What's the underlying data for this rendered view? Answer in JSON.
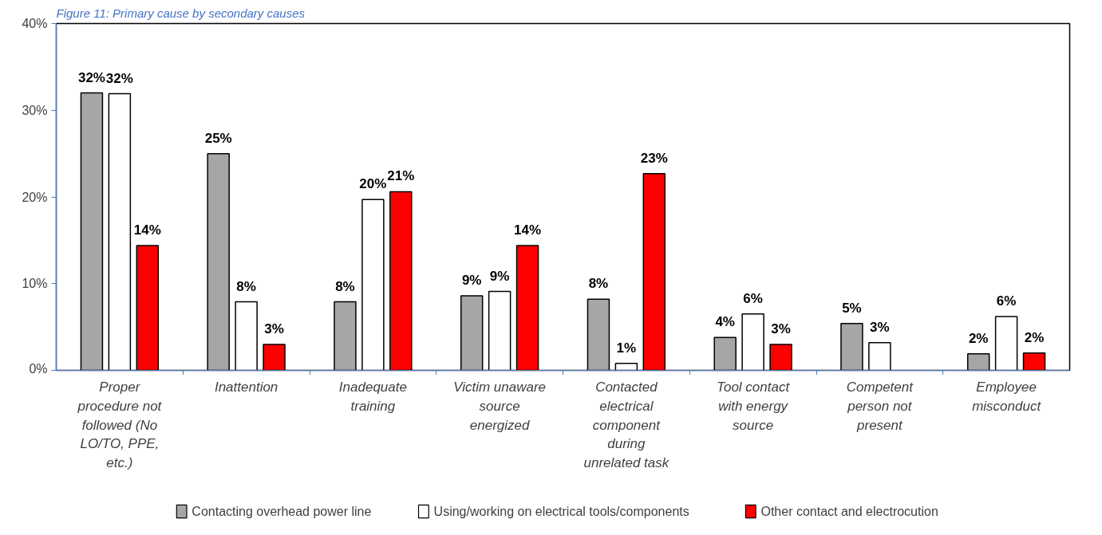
{
  "chart_data": {
    "type": "bar",
    "title": "Figure 11: Primary cause by secondary causes",
    "categories": [
      "Proper procedure not followed (No LO/TO, PPE, etc.)",
      "Inattention",
      "Inadequate training",
      "Victim unaware source energized",
      "Contacted electrical component during unrelated task",
      "Tool contact with energy source",
      "Competent person not present",
      "Employee misconduct"
    ],
    "series": [
      {
        "name": "Contacting overhead power line",
        "color": "#a6a6a6",
        "values": [
          32.0,
          25.0,
          7.9,
          8.6,
          8.2,
          3.8,
          5.4,
          1.9
        ],
        "value_labels": [
          "32%",
          "25%",
          "8%",
          "9%",
          "8%",
          "4%",
          "5%",
          "2%"
        ]
      },
      {
        "name": "Using/working on electrical tools/components",
        "color": "#ffffff",
        "values": [
          31.9,
          7.9,
          19.7,
          9.1,
          0.8,
          6.5,
          3.2,
          6.2
        ],
        "value_labels": [
          "32%",
          "8%",
          "20%",
          "9%",
          "1%",
          "6%",
          "3%",
          "6%"
        ]
      },
      {
        "name": "Other contact and electrocution",
        "color": "#ff0000",
        "values": [
          14.4,
          3.0,
          20.6,
          14.4,
          22.7,
          3.0,
          null,
          2.0
        ],
        "value_labels": [
          "14%",
          "3%",
          "21%",
          "14%",
          "23%",
          "3%",
          null,
          "2%"
        ]
      }
    ],
    "ylim": [
      0,
      40
    ],
    "yticks": [
      {
        "value": 0,
        "label": "0%"
      },
      {
        "value": 10,
        "label": "10%"
      },
      {
        "value": 20,
        "label": "20%"
      },
      {
        "value": 30,
        "label": "30%"
      },
      {
        "value": 40,
        "label": "40%"
      }
    ],
    "grid": false,
    "legend": "bottom"
  }
}
